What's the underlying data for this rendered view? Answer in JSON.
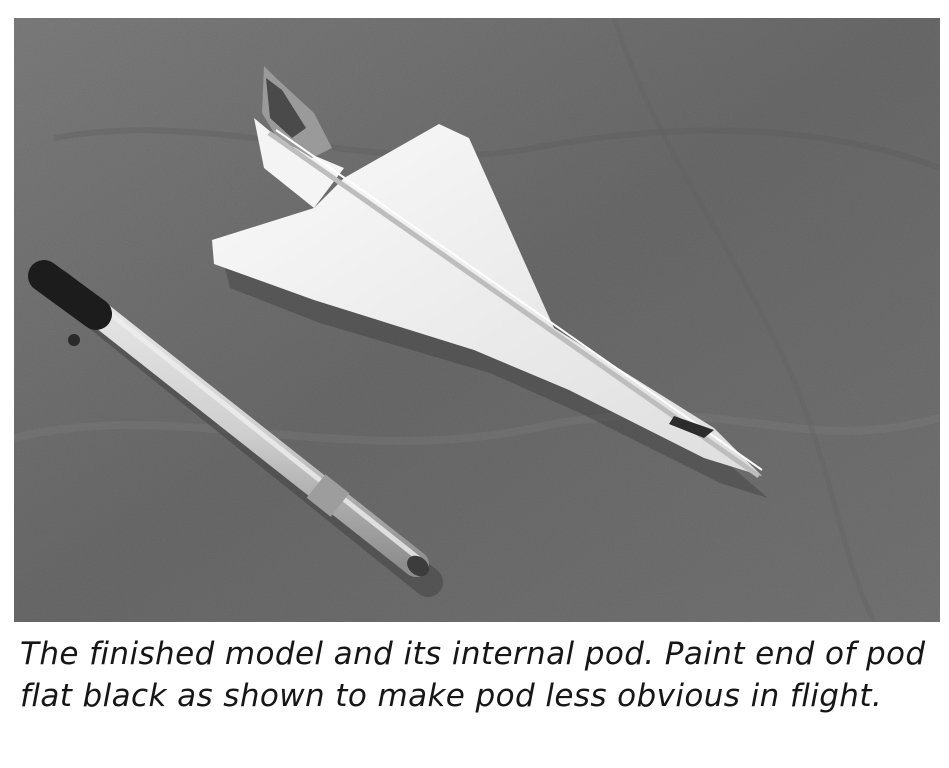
{
  "figure": {
    "photo_subject": "Concorde-style delta-wing model beside its cylindrical internal pod",
    "caption": "The finished model and its internal pod. Paint end of pod flat black as shown to make pod less obvious in flight."
  },
  "colors": {
    "background_cloth": "#6f6f6f",
    "model_white": "#f1f1f1",
    "pod_tube": "#cfcfcf",
    "pod_black_end": "#1c1c1c",
    "caption_text": "#161616"
  }
}
